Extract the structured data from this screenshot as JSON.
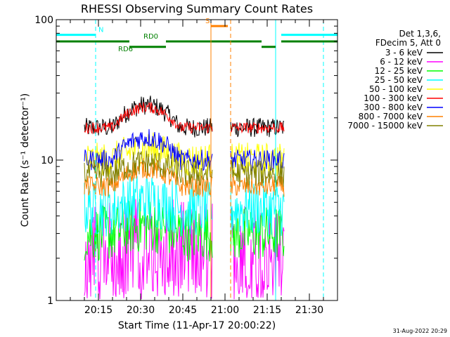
{
  "chart_data": {
    "type": "line",
    "title": "RHESSI Observing Summary Count Rates",
    "xlabel": "Start Time (11-Apr-17 20:00:22)",
    "ylabel": "Count Rate (s⁻¹ detector⁻¹)",
    "y_scale": "log",
    "ylim": [
      1,
      100
    ],
    "xlim_minutes_after_20_00": [
      0,
      100
    ],
    "x_ticks": [
      {
        "t": 15,
        "label": "20:15"
      },
      {
        "t": 30,
        "label": "20:30"
      },
      {
        "t": 45,
        "label": "20:45"
      },
      {
        "t": 60,
        "label": "21:00"
      },
      {
        "t": 75,
        "label": "21:15"
      },
      {
        "t": 90,
        "label": "21:30"
      }
    ],
    "y_ticks": [
      {
        "v": 1,
        "label": "1"
      },
      {
        "v": 10,
        "label": "10"
      },
      {
        "v": 100,
        "label": "100"
      }
    ],
    "legend_title": [
      "Det 1,3,6,",
      "FDecim 5, Att 0"
    ],
    "legend_position": "right",
    "footer_date": "31-Aug-2022 20:29",
    "data_gaps": [
      [
        0,
        10
      ],
      [
        55.5,
        62
      ],
      [
        81,
        100
      ]
    ],
    "series": [
      {
        "name": "3 - 6 keV",
        "color": "#000000",
        "base": 17,
        "noise": 0.14,
        "hump": 0.45,
        "drop": 0
      },
      {
        "name": "6 - 12 keV",
        "color": "#ff00ff",
        "base": 2.7,
        "noise": 0.55,
        "hump": 0.1,
        "drop": 0.35
      },
      {
        "name": "12 - 25 keV",
        "color": "#00ff00",
        "base": 3.0,
        "noise": 0.4,
        "hump": 0.15,
        "drop": 0
      },
      {
        "name": "25 - 50 keV",
        "color": "#00ffff",
        "base": 4.5,
        "noise": 0.4,
        "hump": 0.15,
        "drop": 0
      },
      {
        "name": "50 - 100 keV",
        "color": "#ffff00",
        "base": 10,
        "noise": 0.25,
        "hump": 0.2,
        "drop": 0
      },
      {
        "name": "100 - 300 keV",
        "color": "#ff0000",
        "base": 17,
        "noise": 0.08,
        "hump": 0.4,
        "drop": 0
      },
      {
        "name": "300 - 800 keV",
        "color": "#0000ff",
        "base": 10,
        "noise": 0.15,
        "hump": 0.45,
        "drop": 0
      },
      {
        "name": "800 - 7000 keV",
        "color": "#ff8000",
        "base": 6.5,
        "noise": 0.15,
        "hump": 0.35,
        "drop": 0
      },
      {
        "name": "7000 - 15000 keV",
        "color": "#808000",
        "base": 8,
        "noise": 0.2,
        "hump": 0.2,
        "drop": 0
      }
    ],
    "annotations": [
      {
        "label": "N",
        "color": "#00ffff",
        "segments": [
          [
            0,
            14
          ],
          [
            80,
            100
          ]
        ],
        "value": 78,
        "verticals": [
          [
            14,
            "dashed"
          ],
          [
            78,
            "solid"
          ],
          [
            95,
            "dashed"
          ]
        ]
      },
      {
        "label": "RD0",
        "color": "#008000",
        "segments": [
          [
            0,
            26
          ],
          [
            39,
            73
          ],
          [
            80,
            100
          ]
        ],
        "value": 70
      },
      {
        "label": "RD6",
        "color": "#008000",
        "segments": [
          [
            26,
            39
          ],
          [
            73,
            78
          ]
        ],
        "value": 64
      },
      {
        "label": "S",
        "color": "#ff8000",
        "segments": [
          [
            55,
            61
          ]
        ],
        "value": 90,
        "verticals": [
          [
            55,
            "solid"
          ],
          [
            62,
            "dashed"
          ]
        ]
      }
    ]
  }
}
